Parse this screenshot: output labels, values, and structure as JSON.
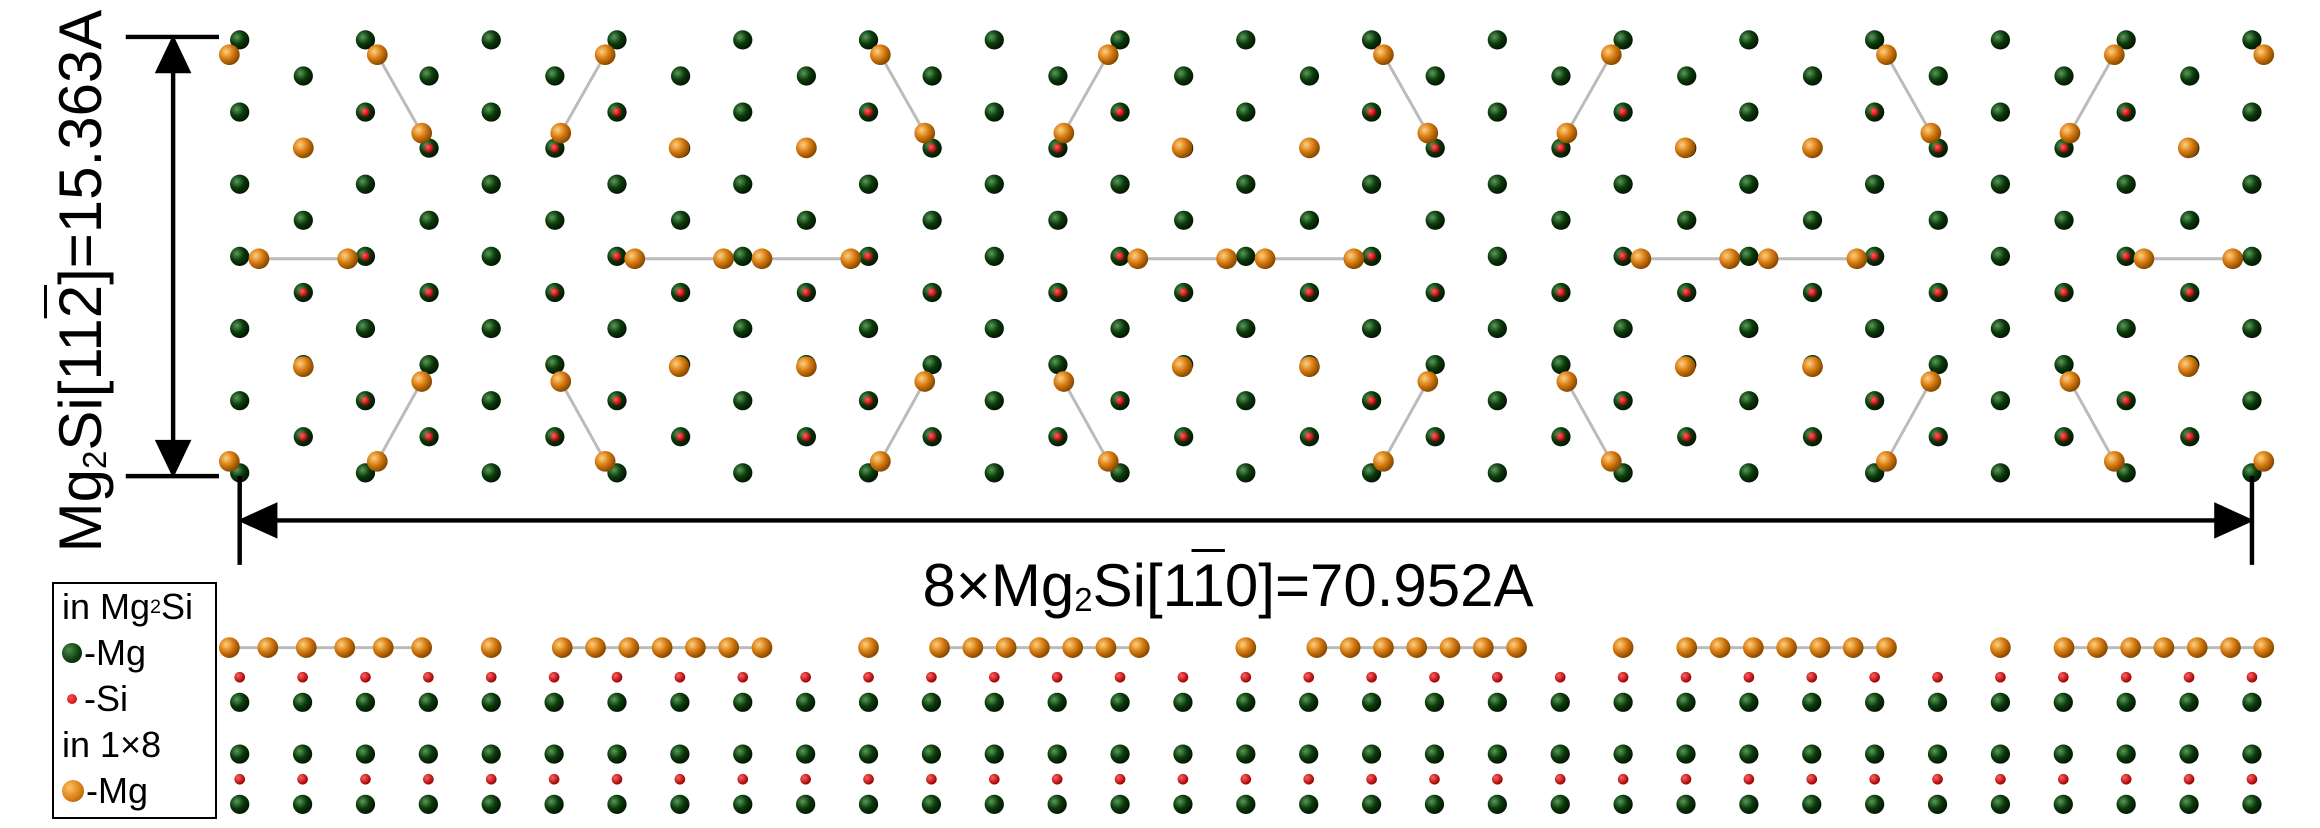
{
  "vertical_label": [
    {
      "text": "Mg"
    },
    {
      "text": "2",
      "style": "sub"
    },
    {
      "text": "Si[11"
    },
    {
      "text": "2",
      "style": "overline"
    },
    {
      "text": "]=15.363A"
    }
  ],
  "horizontal_label": [
    {
      "text": "8×Mg"
    },
    {
      "text": "2",
      "style": "sub"
    },
    {
      "text": "Si[1"
    },
    {
      "text": "1",
      "style": "overline"
    },
    {
      "text": "0]=70.952A"
    }
  ],
  "legend": {
    "heading1": [
      {
        "text": "in Mg"
      },
      {
        "text": "2",
        "style": "sub"
      },
      {
        "text": "Si"
      }
    ],
    "item1": "-Mg",
    "item2": "-Si",
    "heading2": "in 1×8",
    "item3": "-Mg"
  }
}
